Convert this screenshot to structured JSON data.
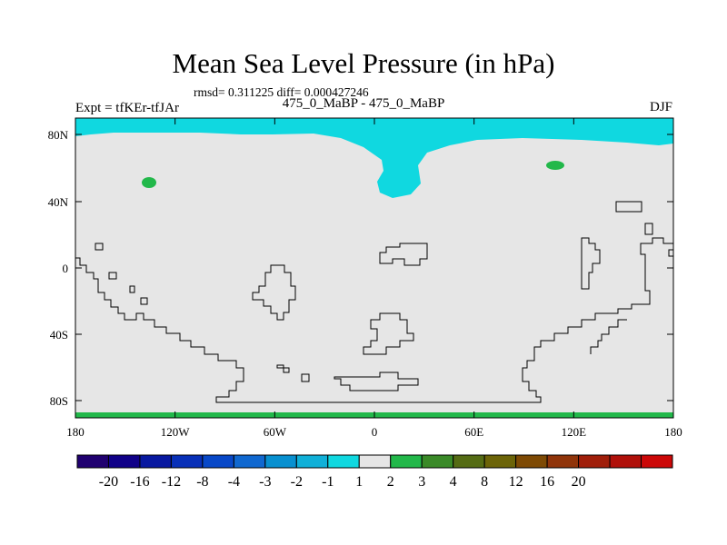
{
  "title": "Mean Sea Level Pressure (in hPa)",
  "stats": "rmsd= 0.311225 diff= 0.000427246",
  "experiment": "Expt = tfKEr-tfJAr",
  "period": "475_0_MaBP - 475_0_MaBP",
  "season": "DJF",
  "map": {
    "lat_ticks": [
      "80N",
      "40N",
      "0",
      "40S",
      "80S"
    ],
    "lon_ticks": [
      "180",
      "120W",
      "60W",
      "0",
      "60E",
      "120E",
      "180"
    ],
    "background_color": "#e6e6e6",
    "field_colors": {
      "negative_-2_to_-1": "#10d8e0",
      "positive_1_to_2": "#22b84a"
    }
  },
  "colorbar": {
    "colors": [
      "#200070",
      "#100088",
      "#0818a0",
      "#0830b8",
      "#0848c8",
      "#1068d0",
      "#0890d0",
      "#10b0d8",
      "#10d8e0",
      "#e6e6e6",
      "#22b84a",
      "#3a8a28",
      "#556c14",
      "#6c6408",
      "#7e4a04",
      "#90340a",
      "#a01e0a",
      "#b0100a",
      "#cc0808"
    ],
    "labels": [
      "-20",
      "-16",
      "-12",
      "-8",
      "-4",
      "-3",
      "-2",
      "-1",
      "1",
      "2",
      "3",
      "4",
      "8",
      "12",
      "16",
      "20"
    ]
  }
}
